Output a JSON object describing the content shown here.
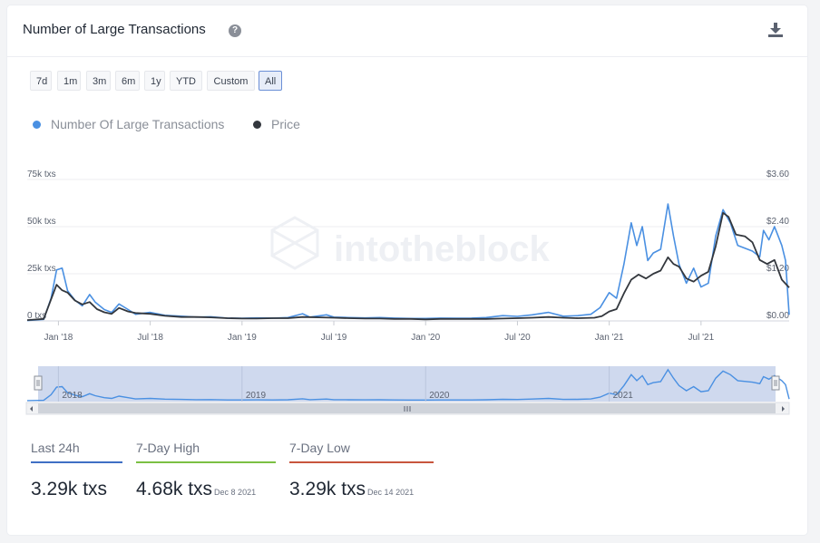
{
  "header": {
    "title": "Number of Large Transactions",
    "help_icon": "question-circle-icon",
    "download_icon": "download-icon"
  },
  "ranges": [
    "7d",
    "1m",
    "3m",
    "6m",
    "1y",
    "YTD",
    "Custom",
    "All"
  ],
  "active_range": "All",
  "watermark": "intotheblock",
  "stats": [
    {
      "label": "Last 24h",
      "value": "3.29k txs",
      "date": "",
      "color": "#3f6fc4"
    },
    {
      "label": "7-Day High",
      "value": "4.68k txs",
      "date": "Dec 8 2021",
      "color": "#7bc043"
    },
    {
      "label": "7-Day Low",
      "value": "3.29k txs",
      "date": "Dec 14 2021",
      "color": "#c8553d"
    }
  ],
  "chart_data": {
    "type": "line",
    "x_start": "2017-11",
    "x_end": "2021-12",
    "x_ticks": [
      {
        "label": "Jan '18",
        "x": 2018.0
      },
      {
        "label": "Jul '18",
        "x": 2018.5
      },
      {
        "label": "Jan '19",
        "x": 2019.0
      },
      {
        "label": "Jul '19",
        "x": 2019.5
      },
      {
        "label": "Jan '20",
        "x": 2020.0
      },
      {
        "label": "Jul '20",
        "x": 2020.5
      },
      {
        "label": "Jan '21",
        "x": 2021.0
      },
      {
        "label": "Jul '21",
        "x": 2021.5
      }
    ],
    "left_axis": {
      "ticks": [
        "0 txs",
        "25k txs",
        "50k txs",
        "75k txs"
      ],
      "values": [
        0,
        25000,
        50000,
        75000
      ],
      "range": [
        0,
        75000
      ]
    },
    "right_axis": {
      "ticks": [
        "$0.00",
        "$1.20",
        "$2.40",
        "$3.60"
      ],
      "values": [
        0,
        1.2,
        2.4,
        3.6
      ],
      "range": [
        0,
        3.6
      ]
    },
    "series": [
      {
        "name": "Number Of Large Transactions",
        "color": "#4a90e2",
        "axis": "left",
        "points": [
          [
            2017.83,
            200
          ],
          [
            2017.92,
            800
          ],
          [
            2017.96,
            12000
          ],
          [
            2017.99,
            27000
          ],
          [
            2018.02,
            28000
          ],
          [
            2018.05,
            16000
          ],
          [
            2018.09,
            11000
          ],
          [
            2018.13,
            8000
          ],
          [
            2018.17,
            14000
          ],
          [
            2018.2,
            10000
          ],
          [
            2018.25,
            6000
          ],
          [
            2018.29,
            4500
          ],
          [
            2018.33,
            9000
          ],
          [
            2018.38,
            6000
          ],
          [
            2018.42,
            3500
          ],
          [
            2018.5,
            4500
          ],
          [
            2018.58,
            3000
          ],
          [
            2018.67,
            2500
          ],
          [
            2018.75,
            2000
          ],
          [
            2018.83,
            2200
          ],
          [
            2018.92,
            1500
          ],
          [
            2019.0,
            1400
          ],
          [
            2019.08,
            1600
          ],
          [
            2019.17,
            1500
          ],
          [
            2019.25,
            1800
          ],
          [
            2019.33,
            3800
          ],
          [
            2019.37,
            2000
          ],
          [
            2019.46,
            3200
          ],
          [
            2019.5,
            2000
          ],
          [
            2019.58,
            1800
          ],
          [
            2019.67,
            1600
          ],
          [
            2019.75,
            1800
          ],
          [
            2019.83,
            1500
          ],
          [
            2019.92,
            1300
          ],
          [
            2020.0,
            1300
          ],
          [
            2020.08,
            1500
          ],
          [
            2020.17,
            1400
          ],
          [
            2020.25,
            1500
          ],
          [
            2020.33,
            1800
          ],
          [
            2020.42,
            2800
          ],
          [
            2020.5,
            2400
          ],
          [
            2020.58,
            3200
          ],
          [
            2020.67,
            4500
          ],
          [
            2020.75,
            2500
          ],
          [
            2020.83,
            2800
          ],
          [
            2020.9,
            3500
          ],
          [
            2020.95,
            7000
          ],
          [
            2021.0,
            15000
          ],
          [
            2021.04,
            12000
          ],
          [
            2021.08,
            30000
          ],
          [
            2021.12,
            52000
          ],
          [
            2021.15,
            40000
          ],
          [
            2021.18,
            50000
          ],
          [
            2021.21,
            32000
          ],
          [
            2021.24,
            36000
          ],
          [
            2021.28,
            38000
          ],
          [
            2021.32,
            62000
          ],
          [
            2021.35,
            45000
          ],
          [
            2021.38,
            30000
          ],
          [
            2021.42,
            20000
          ],
          [
            2021.46,
            28000
          ],
          [
            2021.5,
            18000
          ],
          [
            2021.54,
            20000
          ],
          [
            2021.58,
            45000
          ],
          [
            2021.62,
            59000
          ],
          [
            2021.66,
            52000
          ],
          [
            2021.7,
            40000
          ],
          [
            2021.78,
            37000
          ],
          [
            2021.82,
            34000
          ],
          [
            2021.84,
            48000
          ],
          [
            2021.87,
            43000
          ],
          [
            2021.9,
            50000
          ],
          [
            2021.92,
            45000
          ],
          [
            2021.94,
            40000
          ],
          [
            2021.96,
            32000
          ],
          [
            2021.98,
            3290
          ]
        ]
      },
      {
        "name": "Price",
        "color": "#33373d",
        "axis": "right",
        "points": [
          [
            2017.83,
            0.02
          ],
          [
            2017.92,
            0.05
          ],
          [
            2017.96,
            0.55
          ],
          [
            2017.99,
            0.92
          ],
          [
            2018.02,
            0.78
          ],
          [
            2018.05,
            0.72
          ],
          [
            2018.09,
            0.52
          ],
          [
            2018.13,
            0.42
          ],
          [
            2018.17,
            0.48
          ],
          [
            2018.21,
            0.3
          ],
          [
            2018.25,
            0.22
          ],
          [
            2018.29,
            0.18
          ],
          [
            2018.33,
            0.33
          ],
          [
            2018.38,
            0.24
          ],
          [
            2018.42,
            0.2
          ],
          [
            2018.5,
            0.18
          ],
          [
            2018.58,
            0.13
          ],
          [
            2018.67,
            0.1
          ],
          [
            2018.75,
            0.1
          ],
          [
            2018.83,
            0.09
          ],
          [
            2018.92,
            0.07
          ],
          [
            2019.0,
            0.06
          ],
          [
            2019.08,
            0.06
          ],
          [
            2019.17,
            0.07
          ],
          [
            2019.25,
            0.07
          ],
          [
            2019.33,
            0.1
          ],
          [
            2019.42,
            0.09
          ],
          [
            2019.5,
            0.08
          ],
          [
            2019.58,
            0.07
          ],
          [
            2019.67,
            0.06
          ],
          [
            2019.75,
            0.06
          ],
          [
            2019.83,
            0.05
          ],
          [
            2019.92,
            0.05
          ],
          [
            2020.0,
            0.04
          ],
          [
            2020.08,
            0.05
          ],
          [
            2020.17,
            0.05
          ],
          [
            2020.25,
            0.05
          ],
          [
            2020.33,
            0.05
          ],
          [
            2020.42,
            0.06
          ],
          [
            2020.5,
            0.07
          ],
          [
            2020.58,
            0.08
          ],
          [
            2020.67,
            0.1
          ],
          [
            2020.75,
            0.08
          ],
          [
            2020.83,
            0.07
          ],
          [
            2020.92,
            0.08
          ],
          [
            2020.96,
            0.12
          ],
          [
            2021.0,
            0.24
          ],
          [
            2021.04,
            0.3
          ],
          [
            2021.08,
            0.7
          ],
          [
            2021.12,
            1.05
          ],
          [
            2021.16,
            1.18
          ],
          [
            2021.2,
            1.08
          ],
          [
            2021.24,
            1.2
          ],
          [
            2021.28,
            1.28
          ],
          [
            2021.32,
            1.62
          ],
          [
            2021.35,
            1.45
          ],
          [
            2021.38,
            1.38
          ],
          [
            2021.42,
            1.08
          ],
          [
            2021.46,
            1.0
          ],
          [
            2021.5,
            1.15
          ],
          [
            2021.54,
            1.25
          ],
          [
            2021.58,
            1.9
          ],
          [
            2021.62,
            2.75
          ],
          [
            2021.65,
            2.65
          ],
          [
            2021.69,
            2.2
          ],
          [
            2021.74,
            2.15
          ],
          [
            2021.78,
            2.0
          ],
          [
            2021.82,
            1.55
          ],
          [
            2021.86,
            1.45
          ],
          [
            2021.9,
            1.55
          ],
          [
            2021.94,
            1.05
          ],
          [
            2021.98,
            0.85
          ]
        ]
      }
    ],
    "navigator": {
      "labels": [
        {
          "label": "2018",
          "x": 2018.0
        },
        {
          "label": "2019",
          "x": 2019.0
        },
        {
          "label": "2020",
          "x": 2020.0
        },
        {
          "label": "2021",
          "x": 2021.0
        }
      ]
    }
  }
}
